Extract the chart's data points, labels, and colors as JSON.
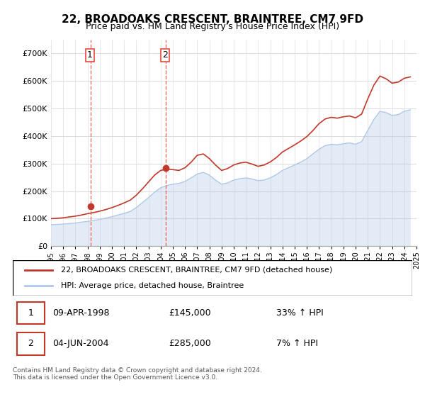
{
  "title": "22, BROADOAKS CRESCENT, BRAINTREE, CM7 9FD",
  "subtitle": "Price paid vs. HM Land Registry's House Price Index (HPI)",
  "ylabel": "",
  "ylim": [
    0,
    750000
  ],
  "yticks": [
    0,
    100000,
    200000,
    300000,
    400000,
    500000,
    600000,
    700000
  ],
  "ytick_labels": [
    "£0",
    "£100K",
    "£200K",
    "£300K",
    "£400K",
    "£500K",
    "£600K",
    "£700K"
  ],
  "hpi_color": "#aec6e8",
  "price_color": "#c0392b",
  "vline_color": "#e74c3c",
  "marker_color": "#c0392b",
  "background_color": "#ffffff",
  "grid_color": "#dddddd",
  "purchase1": {
    "date_idx": 3.25,
    "price": 145000,
    "label": "1",
    "year_label": "09-APR-1998",
    "pct": "33% ↑ HPI"
  },
  "purchase2": {
    "date_idx": 9.5,
    "price": 285000,
    "label": "2",
    "year_label": "04-JUN-2004",
    "pct": "7% ↑ HPI"
  },
  "legend_line1": "22, BROADOAKS CRESCENT, BRAINTREE, CM7 9FD (detached house)",
  "legend_line2": "HPI: Average price, detached house, Braintree",
  "footer": "Contains HM Land Registry data © Crown copyright and database right 2024.\nThis data is licensed under the Open Government Licence v3.0.",
  "table_rows": [
    {
      "num": "1",
      "date": "09-APR-1998",
      "price": "£145,000",
      "change": "33% ↑ HPI"
    },
    {
      "num": "2",
      "date": "04-JUN-2004",
      "price": "£285,000",
      "change": "7% ↑ HPI"
    }
  ],
  "hpi_data": {
    "years": [
      1995,
      1995.5,
      1996,
      1996.5,
      1997,
      1997.5,
      1998,
      1998.5,
      1999,
      1999.5,
      2000,
      2000.5,
      2001,
      2001.5,
      2002,
      2002.5,
      2003,
      2003.5,
      2004,
      2004.5,
      2005,
      2005.5,
      2006,
      2006.5,
      2007,
      2007.5,
      2008,
      2008.5,
      2009,
      2009.5,
      2010,
      2010.5,
      2011,
      2011.5,
      2012,
      2012.5,
      2013,
      2013.5,
      2014,
      2014.5,
      2015,
      2015.5,
      2016,
      2016.5,
      2017,
      2017.5,
      2018,
      2018.5,
      2019,
      2019.5,
      2020,
      2020.5,
      2021,
      2021.5,
      2022,
      2022.5,
      2023,
      2023.5,
      2024,
      2024.5
    ],
    "values": [
      78000,
      79000,
      80000,
      82000,
      84000,
      87000,
      90000,
      93000,
      97000,
      102000,
      107000,
      113000,
      119000,
      126000,
      140000,
      158000,
      176000,
      196000,
      212000,
      220000,
      225000,
      228000,
      235000,
      248000,
      262000,
      268000,
      258000,
      240000,
      225000,
      230000,
      240000,
      245000,
      248000,
      244000,
      238000,
      240000,
      248000,
      260000,
      275000,
      285000,
      295000,
      305000,
      318000,
      335000,
      352000,
      365000,
      370000,
      368000,
      372000,
      375000,
      370000,
      380000,
      420000,
      460000,
      490000,
      485000,
      475000,
      478000,
      490000,
      495000
    ]
  },
  "price_data": {
    "years": [
      1995,
      1995.5,
      1996,
      1996.5,
      1997,
      1997.5,
      1998,
      1998.5,
      1999,
      1999.5,
      2000,
      2000.5,
      2001,
      2001.5,
      2002,
      2002.5,
      2003,
      2003.5,
      2004,
      2004.5,
      2005,
      2005.5,
      2006,
      2006.5,
      2007,
      2007.5,
      2008,
      2008.5,
      2009,
      2009.5,
      2010,
      2010.5,
      2011,
      2011.5,
      2012,
      2012.5,
      2013,
      2013.5,
      2014,
      2014.5,
      2015,
      2015.5,
      2016,
      2016.5,
      2017,
      2017.5,
      2018,
      2018.5,
      2019,
      2019.5,
      2020,
      2020.5,
      2021,
      2021.5,
      2022,
      2022.5,
      2023,
      2023.5,
      2024,
      2024.5
    ],
    "values": [
      100000,
      101000,
      103000,
      106000,
      109000,
      113000,
      118000,
      122000,
      127000,
      133000,
      140000,
      148000,
      157000,
      167000,
      185000,
      208000,
      233000,
      258000,
      275000,
      280000,
      278000,
      275000,
      285000,
      305000,
      330000,
      335000,
      318000,
      295000,
      275000,
      282000,
      295000,
      302000,
      305000,
      298000,
      290000,
      295000,
      306000,
      322000,
      342000,
      355000,
      368000,
      382000,
      398000,
      420000,
      445000,
      462000,
      468000,
      465000,
      470000,
      473000,
      466000,
      480000,
      535000,
      585000,
      618000,
      608000,
      592000,
      596000,
      610000,
      615000
    ]
  }
}
